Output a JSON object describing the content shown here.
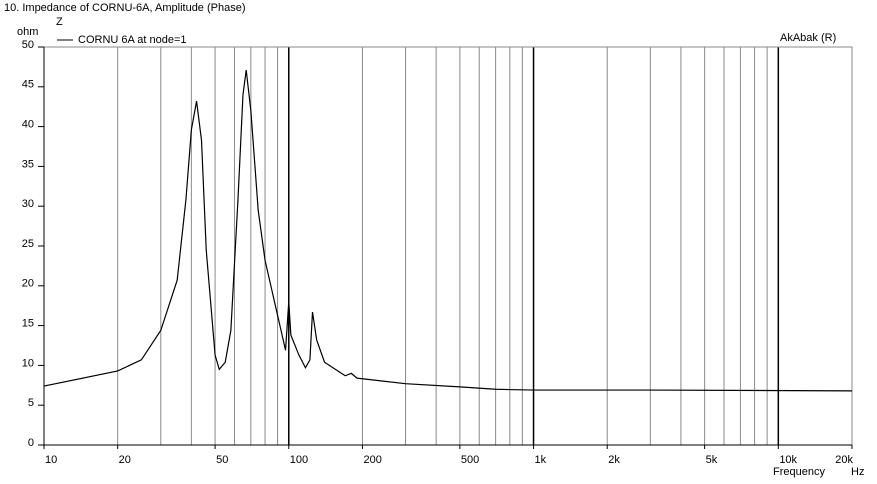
{
  "chart_data": {
    "type": "line",
    "title": "10. Impedance of CORNU-6A, Amplitude (Phase)",
    "y_axis_symbol": "Z",
    "y_axis_unit": "ohm",
    "x_axis_label": "Frequency",
    "x_axis_unit": "Hz",
    "brand": "AkAbak (R)",
    "xscale": "log",
    "x": [
      10,
      20,
      25,
      30,
      35,
      38,
      40,
      42,
      44,
      46,
      50,
      52,
      55,
      58,
      62,
      65,
      67,
      70,
      75,
      80,
      90,
      97,
      100,
      102,
      110,
      117,
      122,
      125,
      130,
      140,
      170,
      180,
      190,
      300,
      500,
      700,
      1000,
      3000,
      20000
    ],
    "series": [
      {
        "name": "CORNU 6A at node=1",
        "color": "#000000",
        "values": [
          7.4,
          9.3,
          10.7,
          14.4,
          20.7,
          30.8,
          39.6,
          43.2,
          38.3,
          24.5,
          11.3,
          9.5,
          10.4,
          14.4,
          30.8,
          44,
          47.1,
          42,
          29.5,
          23.2,
          16.3,
          11.9,
          18,
          13.8,
          11.3,
          9.7,
          10.7,
          16.7,
          13.2,
          10.4,
          8.7,
          9.0,
          8.4,
          7.7,
          7.3,
          7.0,
          6.9,
          6.9,
          6.8
        ]
      }
    ],
    "xlim": [
      10,
      20000
    ],
    "ylim": [
      0,
      50
    ],
    "xticks": [
      10,
      20,
      50,
      100,
      200,
      500,
      {
        "value": 1000,
        "label": "1k"
      },
      {
        "value": 2000,
        "label": "2k"
      },
      {
        "value": 5000,
        "label": "5k"
      },
      {
        "value": 10000,
        "label": "10k"
      },
      {
        "value": 20000,
        "label": "20k"
      }
    ],
    "x_major_grid": [
      100,
      1000,
      10000
    ],
    "x_minor_grid": [
      20,
      30,
      40,
      50,
      60,
      70,
      80,
      90,
      200,
      300,
      400,
      500,
      600,
      700,
      800,
      900,
      2000,
      3000,
      4000,
      5000,
      6000,
      7000,
      8000,
      9000
    ],
    "yticks": [
      0,
      5,
      10,
      15,
      20,
      25,
      30,
      35,
      40,
      45,
      50
    ]
  }
}
